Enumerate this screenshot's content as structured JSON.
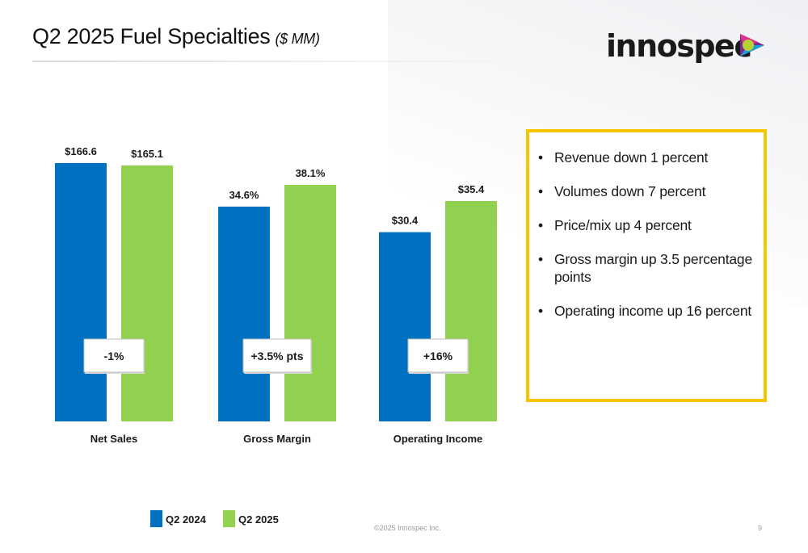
{
  "slide": {
    "title": "Q2 2025 Fuel Specialties",
    "title_unit": "($ MM)",
    "logo_text": "innospec",
    "copyright": "©2025 Innospec Inc.",
    "page_number": "9"
  },
  "colors": {
    "series_2024": "#0070c0",
    "series_2025": "#92d050",
    "box_border": "#f7c600"
  },
  "chart_data": {
    "type": "bar",
    "categories": [
      "Net Sales",
      "Gross Margin",
      "Operating Income"
    ],
    "series": [
      {
        "name": "Q2 2024",
        "values": [
          166.6,
          34.6,
          30.4
        ],
        "labels": [
          "$166.6",
          "34.6%",
          "$30.4"
        ]
      },
      {
        "name": "Q2 2025",
        "values": [
          165.1,
          38.1,
          35.4
        ],
        "labels": [
          "$165.1",
          "38.1%",
          "$35.4"
        ]
      }
    ],
    "deltas": [
      "-1%",
      "+3.5% pts",
      "+16%"
    ],
    "legend_position": "bottom-left",
    "grid": false
  },
  "highlights": [
    "Revenue down 1 percent",
    "Volumes down 7 percent",
    "Price/mix up 4 percent",
    "Gross margin up 3.5 percentage points",
    "Operating income up 16 percent"
  ]
}
